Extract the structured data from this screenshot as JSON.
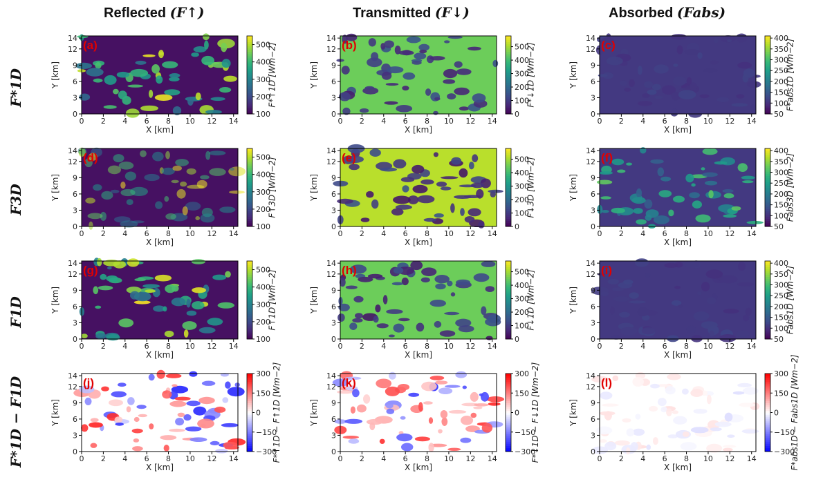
{
  "column_titles": [
    {
      "text": "Reflected",
      "math": "(F↑)"
    },
    {
      "text": "Transmitted",
      "math": "(F↓)"
    },
    {
      "text": "Absorbed",
      "math": "(Fabs)"
    }
  ],
  "row_labels": [
    "F*1D",
    "F3D",
    "F1D",
    "F*1D − F1D"
  ],
  "colors": {
    "viridis_low": "#440154",
    "viridis_mid": "#21918c",
    "viridis_high": "#fde725",
    "diverging_low": "#0000ff",
    "diverging_mid": "#ffffff",
    "diverging_high": "#ff0000",
    "panel_label": "#e10000"
  },
  "chart_data": [
    {
      "type": "heatmap",
      "panel": "(a)",
      "xlabel": "X [km]",
      "ylabel": "Y [km]",
      "xlim": [
        0,
        14.4
      ],
      "ylim": [
        0,
        14.4
      ],
      "xticks": [
        0,
        2,
        4,
        6,
        8,
        10,
        12,
        14
      ],
      "yticks": [
        0,
        3,
        6,
        9,
        12,
        14
      ],
      "colormap": "viridis",
      "cbar_label": "F*↑1D [Wm−2]",
      "cbar_range": [
        100,
        550
      ],
      "cbar_ticks": [
        100,
        200,
        300,
        400,
        500
      ],
      "background_value": 120
    },
    {
      "type": "heatmap",
      "panel": "(b)",
      "xlabel": "X [km]",
      "ylabel": "Y [km]",
      "xlim": [
        0,
        14.4
      ],
      "ylim": [
        0,
        14.4
      ],
      "xticks": [
        0,
        2,
        4,
        6,
        8,
        10,
        12,
        14
      ],
      "yticks": [
        0,
        3,
        6,
        9,
        12,
        14
      ],
      "colormap": "viridis",
      "cbar_label": "F*↓1D [Wm−2]",
      "cbar_range": [
        0,
        580
      ],
      "cbar_ticks": [
        0,
        100,
        200,
        300,
        400,
        500
      ],
      "background_value": 450
    },
    {
      "type": "heatmap",
      "panel": "(c)",
      "xlabel": "X [km]",
      "ylabel": "Y [km]",
      "xlim": [
        0,
        14.4
      ],
      "ylim": [
        0,
        14.4
      ],
      "xticks": [
        0,
        2,
        4,
        6,
        8,
        10,
        12,
        14
      ],
      "yticks": [
        0,
        3,
        6,
        9,
        12,
        14
      ],
      "colormap": "viridis",
      "cbar_label": "F*abs1D [Wm−2]",
      "cbar_range": [
        50,
        410
      ],
      "cbar_ticks": [
        50,
        100,
        150,
        200,
        250,
        300,
        350,
        400
      ],
      "background_value": 110
    },
    {
      "type": "heatmap",
      "panel": "(d)",
      "xlabel": "X [km]",
      "ylabel": "Y [km]",
      "xlim": [
        0,
        14.4
      ],
      "ylim": [
        0,
        14.4
      ],
      "xticks": [
        0,
        2,
        4,
        6,
        8,
        10,
        12,
        14
      ],
      "yticks": [
        0,
        3,
        6,
        9,
        12,
        14
      ],
      "colormap": "viridis",
      "cbar_label": "F↑3D [Wm−2]",
      "cbar_range": [
        100,
        550
      ],
      "cbar_ticks": [
        100,
        200,
        300,
        400,
        500
      ],
      "background_value": 120
    },
    {
      "type": "heatmap",
      "panel": "(e)",
      "xlabel": "X [km]",
      "ylabel": "Y [km]",
      "xlim": [
        0,
        14.4
      ],
      "ylim": [
        0,
        14.4
      ],
      "xticks": [
        0,
        2,
        4,
        6,
        8,
        10,
        12,
        14
      ],
      "yticks": [
        0,
        3,
        6,
        9,
        12,
        14
      ],
      "colormap": "viridis",
      "cbar_label": "F↓3D [Wm−2]",
      "cbar_range": [
        0,
        580
      ],
      "cbar_ticks": [
        0,
        100,
        200,
        300,
        400,
        500
      ],
      "background_value": 520
    },
    {
      "type": "heatmap",
      "panel": "(f)",
      "xlabel": "X [km]",
      "ylabel": "Y [km]",
      "xlim": [
        0,
        14.4
      ],
      "ylim": [
        0,
        14.4
      ],
      "xticks": [
        0,
        2,
        4,
        6,
        8,
        10,
        12,
        14
      ],
      "yticks": [
        0,
        3,
        6,
        9,
        12,
        14
      ],
      "colormap": "viridis",
      "cbar_label": "Fabs3D [Wm−2]",
      "cbar_range": [
        50,
        410
      ],
      "cbar_ticks": [
        50,
        100,
        150,
        200,
        250,
        300,
        350,
        400
      ],
      "background_value": 110
    },
    {
      "type": "heatmap",
      "panel": "(g)",
      "xlabel": "X [km]",
      "ylabel": "Y [km]",
      "xlim": [
        0,
        14.4
      ],
      "ylim": [
        0,
        14.4
      ],
      "xticks": [
        0,
        2,
        4,
        6,
        8,
        10,
        12,
        14
      ],
      "yticks": [
        0,
        3,
        6,
        9,
        12,
        14
      ],
      "colormap": "viridis",
      "cbar_label": "F↑1D [Wm−2]",
      "cbar_range": [
        100,
        550
      ],
      "cbar_ticks": [
        100,
        200,
        300,
        400,
        500
      ],
      "background_value": 120
    },
    {
      "type": "heatmap",
      "panel": "(h)",
      "xlabel": "X [km]",
      "ylabel": "Y [km]",
      "xlim": [
        0,
        14.4
      ],
      "ylim": [
        0,
        14.4
      ],
      "xticks": [
        0,
        2,
        4,
        6,
        8,
        10,
        12,
        14
      ],
      "yticks": [
        0,
        3,
        6,
        9,
        12,
        14
      ],
      "colormap": "viridis",
      "cbar_label": "F↓1D [Wm−2]",
      "cbar_range": [
        0,
        580
      ],
      "cbar_ticks": [
        0,
        100,
        200,
        300,
        400,
        500
      ],
      "background_value": 450
    },
    {
      "type": "heatmap",
      "panel": "(i)",
      "xlabel": "X [km]",
      "ylabel": "Y [km]",
      "xlim": [
        0,
        14.4
      ],
      "ylim": [
        0,
        14.4
      ],
      "xticks": [
        0,
        2,
        4,
        6,
        8,
        10,
        12,
        14
      ],
      "yticks": [
        0,
        3,
        6,
        9,
        12,
        14
      ],
      "colormap": "viridis",
      "cbar_label": "Fabs1D [Wm−2]",
      "cbar_range": [
        50,
        410
      ],
      "cbar_ticks": [
        50,
        100,
        150,
        200,
        250,
        300,
        350,
        400
      ],
      "background_value": 110
    },
    {
      "type": "heatmap",
      "panel": "(j)",
      "xlabel": "X [km]",
      "ylabel": "Y [km]",
      "xlim": [
        0,
        14.4
      ],
      "ylim": [
        0,
        14.4
      ],
      "xticks": [
        0,
        2,
        4,
        6,
        8,
        10,
        12,
        14
      ],
      "yticks": [
        0,
        3,
        6,
        9,
        12,
        14
      ],
      "colormap": "bwr",
      "cbar_label": "F*↑1D − F↑1D [Wm−2]",
      "cbar_range": [
        -300,
        300
      ],
      "cbar_ticks": [
        -300,
        -150,
        0,
        150,
        300
      ],
      "background_value": 0
    },
    {
      "type": "heatmap",
      "panel": "(k)",
      "xlabel": "X [km]",
      "ylabel": "Y [km]",
      "xlim": [
        0,
        14.4
      ],
      "ylim": [
        0,
        14.4
      ],
      "xticks": [
        0,
        2,
        4,
        6,
        8,
        10,
        12,
        14
      ],
      "yticks": [
        0,
        3,
        6,
        9,
        12,
        14
      ],
      "colormap": "bwr",
      "cbar_label": "F*↓1D − F↓1D [Wm−2]",
      "cbar_range": [
        -300,
        300
      ],
      "cbar_ticks": [
        -300,
        -150,
        0,
        150,
        300
      ],
      "background_value": 0
    },
    {
      "type": "heatmap",
      "panel": "(l)",
      "xlabel": "X [km]",
      "ylabel": "Y [km]",
      "xlim": [
        0,
        14.4
      ],
      "ylim": [
        0,
        14.4
      ],
      "xticks": [
        0,
        2,
        4,
        6,
        8,
        10,
        12,
        14
      ],
      "yticks": [
        0,
        3,
        6,
        9,
        12,
        14
      ],
      "colormap": "bwr",
      "cbar_label": "F*abs1D − Fabs1D [Wm−2]",
      "cbar_range": [
        -300,
        300
      ],
      "cbar_ticks": [
        -300,
        -150,
        0,
        150,
        300
      ],
      "background_value": 0
    }
  ]
}
